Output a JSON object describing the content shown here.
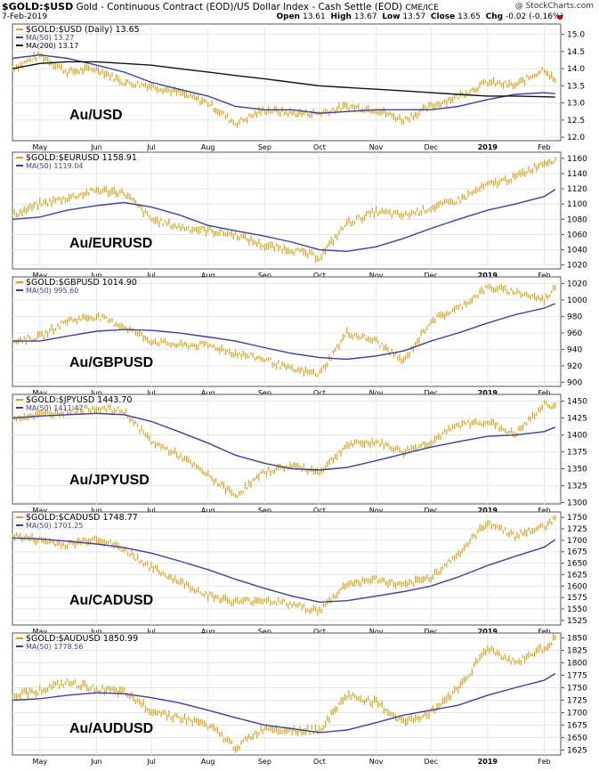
{
  "header": {
    "symbol": "$GOLD:$USD",
    "description": "Gold - Continuous Contract (EOD)/US Dollar Index - Cash Settle (EOD)",
    "exchange": "CME/ICE",
    "brand": "@ StockCharts.com",
    "date": "7-Feb-2019",
    "open_label": "Open",
    "open": "13.61",
    "high_label": "High",
    "high": "13.67",
    "low_label": "Low",
    "low": "13.57",
    "close_label": "Close",
    "close": "13.65",
    "chg_label": "Chg",
    "chg": "-0.02 (-0.16%)",
    "chg_color": "#d00000"
  },
  "colors": {
    "price": "#d9a21b",
    "ma50": "#3e3ea0",
    "ma200": "#111111"
  },
  "chart_data": [
    {
      "type": "line",
      "legend": [
        "$GOLD:$USD (Daily) 13.65",
        "MA(50) 13.27",
        "MA(200) 13.17"
      ],
      "watermark": "Au/USD",
      "ylim": [
        11.9,
        15.3
      ],
      "yticks": [
        "15.0",
        "14.5",
        "14.0",
        "13.5",
        "13.0",
        "12.5",
        "12.0"
      ],
      "x": [
        "Apr-16",
        "May-01",
        "May-16",
        "Jun-01",
        "Jun-16",
        "Jul-01",
        "Jul-16",
        "Aug-01",
        "Aug-16",
        "Sep-01",
        "Sep-16",
        "Oct-01",
        "Oct-16",
        "Nov-01",
        "Nov-16",
        "Dec-01",
        "Dec-16",
        "Jan-01",
        "Jan-16",
        "Feb-01",
        "Feb-07"
      ],
      "series": [
        {
          "role": "price",
          "values": [
            14.0,
            14.4,
            13.9,
            14.0,
            13.6,
            13.5,
            13.3,
            13.0,
            12.4,
            12.8,
            12.7,
            12.7,
            12.9,
            12.8,
            12.5,
            12.9,
            13.2,
            13.6,
            13.5,
            14.0,
            13.65
          ]
        },
        {
          "role": "ma50",
          "values": [
            14.3,
            14.4,
            14.3,
            14.1,
            13.9,
            13.6,
            13.4,
            13.2,
            12.9,
            12.8,
            12.8,
            12.7,
            12.75,
            12.8,
            12.8,
            12.8,
            12.9,
            13.1,
            13.25,
            13.3,
            13.27
          ]
        },
        {
          "role": "ma200",
          "values": [
            14.0,
            14.15,
            14.2,
            14.2,
            14.15,
            14.1,
            14.0,
            13.9,
            13.8,
            13.7,
            13.6,
            13.5,
            13.45,
            13.4,
            13.35,
            13.3,
            13.25,
            13.2,
            13.2,
            13.18,
            13.17
          ]
        }
      ]
    },
    {
      "type": "line",
      "legend": [
        "$GOLD:$EURUSD 1158.91",
        "MA(50) 1119.04"
      ],
      "watermark": "Au/EURUSD",
      "ylim": [
        1015,
        1168
      ],
      "yticks": [
        "1160",
        "1140",
        "1120",
        "1100",
        "1080",
        "1060",
        "1040",
        "1020"
      ],
      "x": [
        "Apr-16",
        "May-01",
        "May-16",
        "Jun-01",
        "Jun-16",
        "Jul-01",
        "Jul-16",
        "Aug-01",
        "Aug-16",
        "Sep-01",
        "Sep-16",
        "Oct-01",
        "Oct-16",
        "Nov-01",
        "Nov-16",
        "Dec-01",
        "Dec-16",
        "Jan-01",
        "Jan-16",
        "Feb-01",
        "Feb-07"
      ],
      "series": [
        {
          "role": "price",
          "values": [
            1085,
            1100,
            1108,
            1118,
            1115,
            1080,
            1070,
            1065,
            1060,
            1045,
            1040,
            1030,
            1075,
            1090,
            1085,
            1095,
            1105,
            1125,
            1135,
            1155,
            1158.91
          ]
        },
        {
          "role": "ma50",
          "values": [
            1080,
            1083,
            1092,
            1098,
            1102,
            1096,
            1086,
            1072,
            1065,
            1058,
            1050,
            1040,
            1038,
            1044,
            1055,
            1068,
            1080,
            1092,
            1100,
            1110,
            1119.04
          ]
        }
      ]
    },
    {
      "type": "line",
      "legend": [
        "$GOLD:$GBPUSD 1014.90",
        "MA(50) 995.60"
      ],
      "watermark": "Au/GBPUSD",
      "ylim": [
        895,
        1028
      ],
      "yticks": [
        "1020",
        "1000",
        "980",
        "960",
        "940",
        "920",
        "900"
      ],
      "x": [
        "Apr-16",
        "May-01",
        "May-16",
        "Jun-01",
        "Jun-16",
        "Jul-01",
        "Jul-16",
        "Aug-01",
        "Aug-16",
        "Sep-01",
        "Sep-16",
        "Oct-01",
        "Oct-16",
        "Nov-01",
        "Nov-16",
        "Dec-01",
        "Dec-16",
        "Jan-01",
        "Jan-16",
        "Feb-01",
        "Feb-07"
      ],
      "series": [
        {
          "role": "price",
          "values": [
            950,
            955,
            975,
            980,
            968,
            950,
            945,
            945,
            935,
            928,
            915,
            910,
            960,
            950,
            925,
            975,
            990,
            1015,
            1010,
            1000,
            1014.9
          ]
        },
        {
          "role": "ma50",
          "values": [
            950,
            950,
            956,
            962,
            964,
            963,
            960,
            955,
            950,
            942,
            935,
            930,
            928,
            932,
            938,
            950,
            960,
            972,
            982,
            990,
            995.6
          ]
        }
      ]
    },
    {
      "type": "line",
      "legend": [
        "$GOLD:$JPYUSD 1443.70",
        "MA(50) 1411.47"
      ],
      "watermark": "Au/JPYUSD",
      "ylim": [
        1298,
        1460
      ],
      "yticks": [
        "1450",
        "1425",
        "1400",
        "1375",
        "1350",
        "1325",
        "1300"
      ],
      "x": [
        "Apr-16",
        "May-01",
        "May-16",
        "Jun-01",
        "Jun-16",
        "Jul-01",
        "Jul-16",
        "Aug-01",
        "Aug-16",
        "Sep-01",
        "Sep-16",
        "Oct-01",
        "Oct-16",
        "Nov-01",
        "Nov-16",
        "Dec-01",
        "Dec-16",
        "Jan-01",
        "Jan-16",
        "Feb-01",
        "Feb-07"
      ],
      "series": [
        {
          "role": "price",
          "values": [
            1425,
            1430,
            1435,
            1440,
            1435,
            1390,
            1370,
            1340,
            1310,
            1345,
            1355,
            1345,
            1385,
            1390,
            1375,
            1390,
            1415,
            1420,
            1400,
            1445,
            1443.7
          ]
        },
        {
          "role": "ma50",
          "values": [
            1425,
            1428,
            1430,
            1432,
            1430,
            1420,
            1405,
            1388,
            1370,
            1358,
            1350,
            1348,
            1352,
            1362,
            1372,
            1382,
            1390,
            1398,
            1400,
            1405,
            1411.47
          ]
        }
      ]
    },
    {
      "type": "line",
      "legend": [
        "$GOLD:$CADUSD 1748.77",
        "MA(50) 1701.25"
      ],
      "watermark": "Au/CADUSD",
      "ylim": [
        1515,
        1762
      ],
      "yticks": [
        "1750",
        "1725",
        "1700",
        "1675",
        "1650",
        "1625",
        "1600",
        "1575",
        "1550",
        "1525"
      ],
      "x": [
        "Apr-16",
        "May-01",
        "May-16",
        "Jun-01",
        "Jun-16",
        "Jul-01",
        "Jul-16",
        "Aug-01",
        "Aug-16",
        "Sep-01",
        "Sep-16",
        "Oct-01",
        "Oct-16",
        "Nov-01",
        "Nov-16",
        "Dec-01",
        "Dec-16",
        "Jan-01",
        "Jan-16",
        "Feb-01",
        "Feb-07"
      ],
      "series": [
        {
          "role": "price",
          "values": [
            1710,
            1700,
            1690,
            1705,
            1680,
            1640,
            1610,
            1580,
            1565,
            1570,
            1560,
            1545,
            1605,
            1615,
            1600,
            1620,
            1670,
            1740,
            1710,
            1730,
            1748.77
          ]
        },
        {
          "role": "ma50",
          "values": [
            1705,
            1703,
            1698,
            1692,
            1684,
            1672,
            1655,
            1636,
            1615,
            1595,
            1578,
            1565,
            1568,
            1578,
            1588,
            1600,
            1620,
            1645,
            1665,
            1685,
            1701.25
          ]
        }
      ]
    },
    {
      "type": "line",
      "legend": [
        "$GOLD:$AUDUSD 1850.99",
        "MA(50) 1778.56"
      ],
      "watermark": "Au/AUDUSD",
      "ylim": [
        1615,
        1860
      ],
      "yticks": [
        "1850",
        "1825",
        "1800",
        "1775",
        "1750",
        "1725",
        "1700",
        "1675",
        "1650",
        "1625"
      ],
      "x": [
        "Apr-16",
        "May-01",
        "May-16",
        "Jun-01",
        "Jun-16",
        "Jul-01",
        "Jul-16",
        "Aug-01",
        "Aug-16",
        "Sep-01",
        "Sep-16",
        "Oct-01",
        "Oct-16",
        "Nov-01",
        "Nov-16",
        "Dec-01",
        "Dec-16",
        "Jan-01",
        "Jan-16",
        "Feb-01",
        "Feb-07"
      ],
      "series": [
        {
          "role": "price",
          "values": [
            1735,
            1745,
            1760,
            1748,
            1740,
            1705,
            1690,
            1675,
            1630,
            1670,
            1665,
            1665,
            1735,
            1720,
            1680,
            1700,
            1750,
            1830,
            1800,
            1830,
            1850.99
          ]
        },
        {
          "role": "ma50",
          "values": [
            1725,
            1728,
            1735,
            1740,
            1738,
            1730,
            1720,
            1705,
            1690,
            1675,
            1668,
            1660,
            1665,
            1680,
            1695,
            1705,
            1715,
            1735,
            1750,
            1765,
            1778.56
          ]
        }
      ]
    }
  ],
  "xaxis": {
    "months": [
      {
        "label": "May",
        "x": "May-01"
      },
      {
        "label": "Jun",
        "x": "Jun-01"
      },
      {
        "label": "Jul",
        "x": "Jul-01"
      },
      {
        "label": "Aug",
        "x": "Aug-01"
      },
      {
        "label": "Sep",
        "x": "Sep-01"
      },
      {
        "label": "Oct",
        "x": "Oct-01"
      },
      {
        "label": "Nov",
        "x": "Nov-01"
      },
      {
        "label": "Dec",
        "x": "Dec-01"
      },
      {
        "label": "2019",
        "x": "Jan-01",
        "bold": true
      },
      {
        "label": "Feb",
        "x": "Feb-01"
      }
    ]
  }
}
